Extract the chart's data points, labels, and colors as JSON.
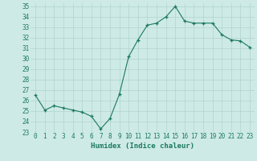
{
  "x": [
    0,
    1,
    2,
    3,
    4,
    5,
    6,
    7,
    8,
    9,
    10,
    11,
    12,
    13,
    14,
    15,
    16,
    17,
    18,
    19,
    20,
    21,
    22,
    23
  ],
  "y": [
    26.5,
    25.1,
    25.5,
    25.3,
    25.1,
    24.9,
    24.5,
    23.3,
    24.3,
    26.6,
    30.2,
    31.8,
    33.2,
    33.4,
    34.0,
    35.0,
    33.6,
    33.4,
    33.4,
    33.4,
    32.3,
    31.8,
    31.7,
    31.1
  ],
  "line_color": "#1a7a5e",
  "marker": "+",
  "marker_color": "#1a7a5e",
  "bg_color": "#ceeae6",
  "grid_color": "#b0d4ce",
  "xlabel": "Humidex (Indice chaleur)",
  "xlabel_color": "#1a7a5e",
  "tick_color": "#1a7a5e",
  "ylim": [
    23,
    35
  ],
  "xlim": [
    -0.5,
    23.5
  ],
  "yticks": [
    23,
    24,
    25,
    26,
    27,
    28,
    29,
    30,
    31,
    32,
    33,
    34,
    35
  ],
  "xticks": [
    0,
    1,
    2,
    3,
    4,
    5,
    6,
    7,
    8,
    9,
    10,
    11,
    12,
    13,
    14,
    15,
    16,
    17,
    18,
    19,
    20,
    21,
    22,
    23
  ],
  "axis_fontsize": 5.5,
  "label_fontsize": 6.5
}
